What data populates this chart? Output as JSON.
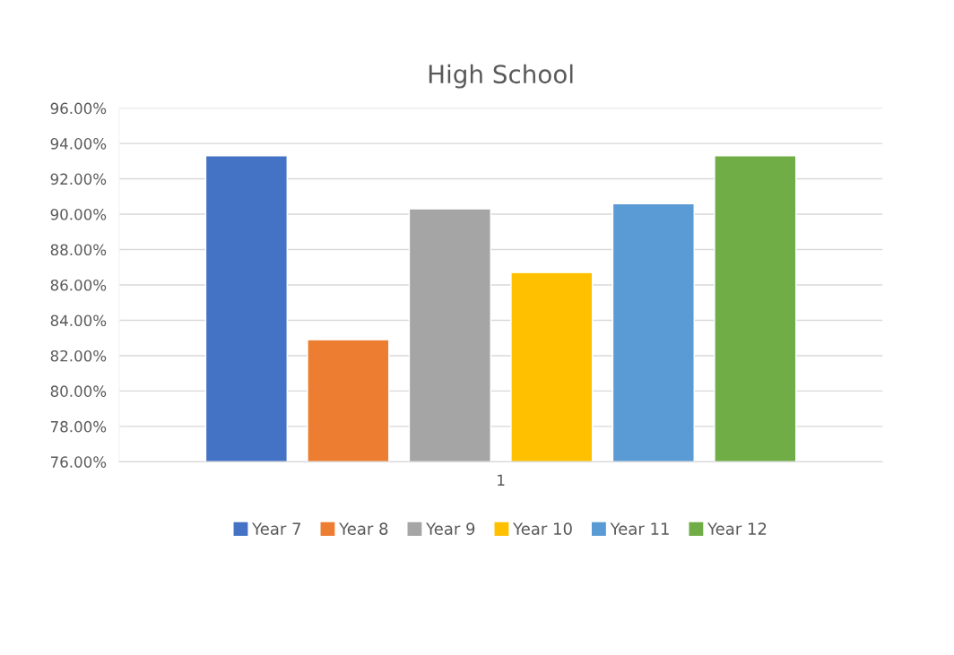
{
  "chart_data": {
    "type": "bar",
    "title": "High School",
    "categories": [
      "1"
    ],
    "series": [
      {
        "name": "Year 7",
        "color": "#4472c4",
        "values": [
          93.3
        ]
      },
      {
        "name": "Year 8",
        "color": "#ed7d31",
        "values": [
          82.9
        ]
      },
      {
        "name": "Year 9",
        "color": "#a5a5a5",
        "values": [
          90.3
        ]
      },
      {
        "name": "Year 10",
        "color": "#ffc000",
        "values": [
          86.7
        ]
      },
      {
        "name": "Year 11",
        "color": "#5b9bd5",
        "values": [
          90.6
        ]
      },
      {
        "name": "Year 12",
        "color": "#70ad47",
        "values": [
          93.3
        ]
      }
    ],
    "ylim": [
      76,
      96
    ],
    "yticks": [
      {
        "value": 76,
        "label": "76.00%"
      },
      {
        "value": 78,
        "label": "78.00%"
      },
      {
        "value": 80,
        "label": "80.00%"
      },
      {
        "value": 82,
        "label": "82.00%"
      },
      {
        "value": 84,
        "label": "84.00%"
      },
      {
        "value": 86,
        "label": "86.00%"
      },
      {
        "value": 88,
        "label": "88.00%"
      },
      {
        "value": 90,
        "label": "90.00%"
      },
      {
        "value": 92,
        "label": "92.00%"
      },
      {
        "value": 94,
        "label": "94.00%"
      },
      {
        "value": 96,
        "label": "96.00%"
      }
    ],
    "grid": "y",
    "legend": "bottom"
  }
}
